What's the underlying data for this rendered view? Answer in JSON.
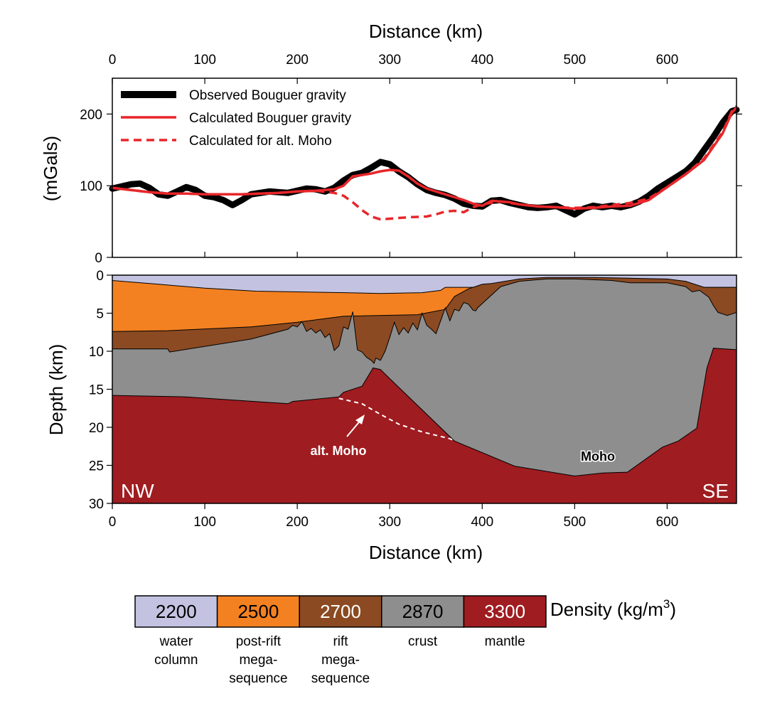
{
  "chart_data": [
    {
      "type": "line",
      "xlabel": "Distance (km)",
      "ylabel": "(mGals)",
      "xlim": [
        0,
        675
      ],
      "ylim": [
        0,
        250
      ],
      "xticks": [
        0,
        100,
        200,
        300,
        400,
        500,
        600
      ],
      "yticks": [
        0,
        100,
        200
      ],
      "legend": "top-left",
      "series": [
        {
          "name": "Observed Bouguer gravity",
          "color": "#000000",
          "style": "thick",
          "x": [
            0,
            10,
            20,
            30,
            40,
            50,
            60,
            70,
            80,
            90,
            100,
            110,
            120,
            130,
            140,
            150,
            160,
            170,
            180,
            190,
            200,
            210,
            220,
            230,
            240,
            250,
            260,
            270,
            280,
            290,
            300,
            310,
            320,
            330,
            340,
            350,
            360,
            370,
            380,
            390,
            400,
            410,
            420,
            430,
            440,
            450,
            460,
            470,
            480,
            490,
            500,
            510,
            520,
            530,
            540,
            550,
            560,
            570,
            580,
            590,
            600,
            610,
            620,
            630,
            640,
            650,
            660,
            670,
            675
          ],
          "y": [
            96,
            99,
            102,
            103,
            97,
            88,
            86,
            92,
            98,
            94,
            86,
            84,
            80,
            73,
            80,
            88,
            90,
            92,
            91,
            90,
            93,
            96,
            95,
            92,
            97,
            107,
            115,
            118,
            125,
            133,
            130,
            120,
            112,
            102,
            94,
            90,
            87,
            82,
            75,
            72,
            71,
            79,
            80,
            76,
            73,
            70,
            69,
            70,
            72,
            66,
            60,
            68,
            72,
            70,
            72,
            70,
            73,
            78,
            86,
            96,
            104,
            112,
            120,
            132,
            150,
            168,
            188,
            204,
            206
          ]
        },
        {
          "name": "Calculated Bouguer gravity",
          "color": "#e8262a",
          "style": "solid",
          "x": [
            0,
            20,
            40,
            60,
            80,
            100,
            120,
            140,
            160,
            180,
            200,
            220,
            240,
            250,
            260,
            270,
            280,
            290,
            300,
            310,
            320,
            330,
            340,
            350,
            360,
            370,
            380,
            390,
            400,
            410,
            420,
            430,
            440,
            460,
            480,
            500,
            520,
            540,
            560,
            580,
            600,
            620,
            640,
            660,
            670,
            675
          ],
          "y": [
            97,
            94,
            91,
            89,
            89,
            88,
            88,
            88,
            89,
            90,
            92,
            93,
            95,
            100,
            113,
            115,
            117,
            120,
            122,
            121,
            113,
            103,
            96,
            92,
            88,
            84,
            80,
            75,
            72,
            79,
            78,
            77,
            74,
            71,
            70,
            68,
            69,
            71,
            72,
            80,
            98,
            116,
            136,
            173,
            202,
            209
          ]
        },
        {
          "name": "Calculated for alt. Moho",
          "color": "#e8262a",
          "style": "dashed",
          "x": [
            0,
            20,
            40,
            60,
            80,
            100,
            120,
            140,
            160,
            180,
            200,
            220,
            240,
            250,
            260,
            270,
            280,
            290,
            300,
            320,
            340,
            350,
            360,
            370,
            380,
            390,
            400,
            420,
            440,
            460,
            480,
            500,
            520,
            540,
            560,
            580,
            600,
            620,
            640,
            660,
            670,
            675
          ],
          "y": [
            97,
            94,
            91,
            89,
            89,
            88,
            88,
            88,
            89,
            90,
            92,
            93,
            90,
            86,
            77,
            66,
            57,
            53,
            54,
            56,
            57,
            60,
            64,
            65,
            63,
            70,
            74,
            78,
            74,
            71,
            70,
            69,
            70,
            73,
            76,
            82,
            98,
            116,
            138,
            175,
            204,
            211
          ]
        }
      ]
    },
    {
      "type": "area",
      "xlabel": "Distance (km)",
      "ylabel": "Depth (km)",
      "xlim": [
        0,
        675
      ],
      "ylim": [
        30,
        0
      ],
      "xticks": [
        0,
        100,
        200,
        300,
        400,
        500,
        600
      ],
      "yticks": [
        0,
        5,
        10,
        15,
        20,
        25,
        30
      ],
      "layers": [
        {
          "name": "water column",
          "density": "2200",
          "color": "#c3c3e1"
        },
        {
          "name": "post-rift mega-sequence",
          "density": "2500",
          "color": "#f38121"
        },
        {
          "name": "rift mega-sequence",
          "density": "2700",
          "color": "#8b4a22"
        },
        {
          "name": "crust",
          "density": "2870",
          "color": "#8e8e8e"
        },
        {
          "name": "mantle",
          "density": "3300",
          "color": "#9f1c20"
        }
      ],
      "top_postrift": {
        "x": [
          0,
          50,
          100,
          155,
          200,
          250,
          290,
          335,
          355,
          360,
          675
        ],
        "y": [
          0.7,
          1.2,
          1.7,
          2.1,
          2.2,
          2.3,
          2.4,
          2.3,
          2.0,
          1.6,
          1.6
        ]
      },
      "top_rift": {
        "x": [
          0,
          60,
          150,
          200,
          250,
          330,
          360,
          370,
          385,
          395,
          400,
          410,
          420,
          440,
          470,
          500,
          520,
          560,
          600,
          620,
          640,
          675
        ],
        "y": [
          7.4,
          7.3,
          6.8,
          6.2,
          5.4,
          5.2,
          4.5,
          2.8,
          1.8,
          1.4,
          1.2,
          1.1,
          0.9,
          0.5,
          0.3,
          0.3,
          0.3,
          0.4,
          0.5,
          0.8,
          1.6,
          1.6
        ]
      },
      "top_crust": {
        "x": [
          0,
          60,
          62,
          150,
          190,
          195,
          200,
          205,
          210,
          215,
          220,
          225,
          230,
          235,
          240,
          245,
          250,
          255,
          260,
          265,
          270,
          275,
          280,
          283,
          285,
          290,
          295,
          300,
          305,
          310,
          315,
          320,
          325,
          330,
          335,
          340,
          345,
          350,
          355,
          360,
          365,
          370,
          375,
          380,
          385,
          390,
          393,
          395,
          420,
          440,
          460,
          470,
          480,
          500,
          520,
          540,
          560,
          600,
          620,
          627,
          635,
          645,
          650,
          655,
          665,
          675
        ],
        "y": [
          9.7,
          9.7,
          10.1,
          8.4,
          7.1,
          6.6,
          6.8,
          6.1,
          7.4,
          7.0,
          7.6,
          7.2,
          8.2,
          7.7,
          9.9,
          9.3,
          6.8,
          7.1,
          4.8,
          9.8,
          10.1,
          10.8,
          11.2,
          11.6,
          10.9,
          11.2,
          10.0,
          8.2,
          6.2,
          7.8,
          6.9,
          7.6,
          6.3,
          7.2,
          5.0,
          6.6,
          7.1,
          7.7,
          6.0,
          4.3,
          6.0,
          4.5,
          4.7,
          3.6,
          3.8,
          4.6,
          4.7,
          4.3,
          1.5,
          0.8,
          0.6,
          0.5,
          0.5,
          0.5,
          0.6,
          0.7,
          1.0,
          1.0,
          1.5,
          2.2,
          2.0,
          2.9,
          4.0,
          4.9,
          5.3,
          4.9
        ]
      },
      "moho": {
        "x": [
          0,
          80,
          190,
          195,
          245,
          250,
          270,
          282,
          290,
          300,
          370,
          435,
          500,
          530,
          557,
          595,
          612,
          632,
          643,
          650,
          675
        ],
        "y": [
          15.8,
          16.0,
          16.9,
          16.6,
          16.0,
          15.4,
          14.6,
          12.2,
          12.4,
          13.6,
          21.8,
          25.1,
          26.4,
          26.0,
          25.9,
          22.6,
          21.8,
          20.1,
          12.2,
          9.6,
          9.8
        ]
      },
      "alt_moho": {
        "x": [
          245,
          270,
          290,
          310,
          335,
          365,
          370
        ],
        "y": [
          16.2,
          16.9,
          18.3,
          19.6,
          20.6,
          21.5,
          21.8
        ]
      },
      "annotations": [
        {
          "text": "alt. Moho"
        },
        {
          "text": "Moho"
        },
        {
          "text": "NW"
        },
        {
          "text": "SE"
        }
      ]
    }
  ],
  "density_legend": {
    "title": "Density (kg/m",
    "superscript": "3",
    "title_end": ")",
    "items": [
      {
        "value": "2200",
        "label_lines": [
          "water",
          "column"
        ],
        "color": "#c3c3e1",
        "text_color": "#000000"
      },
      {
        "value": "2500",
        "label_lines": [
          "post-rift",
          "mega-",
          "sequence"
        ],
        "color": "#f38121",
        "text_color": "#000000"
      },
      {
        "value": "2700",
        "label_lines": [
          "rift",
          "mega-",
          "sequence"
        ],
        "color": "#8b4a22",
        "text_color": "#ffffff"
      },
      {
        "value": "2870",
        "label_lines": [
          "crust"
        ],
        "color": "#8e8e8e",
        "text_color": "#000000"
      },
      {
        "value": "3300",
        "label_lines": [
          "mantle"
        ],
        "color": "#9f1c20",
        "text_color": "#ffffff"
      }
    ]
  }
}
